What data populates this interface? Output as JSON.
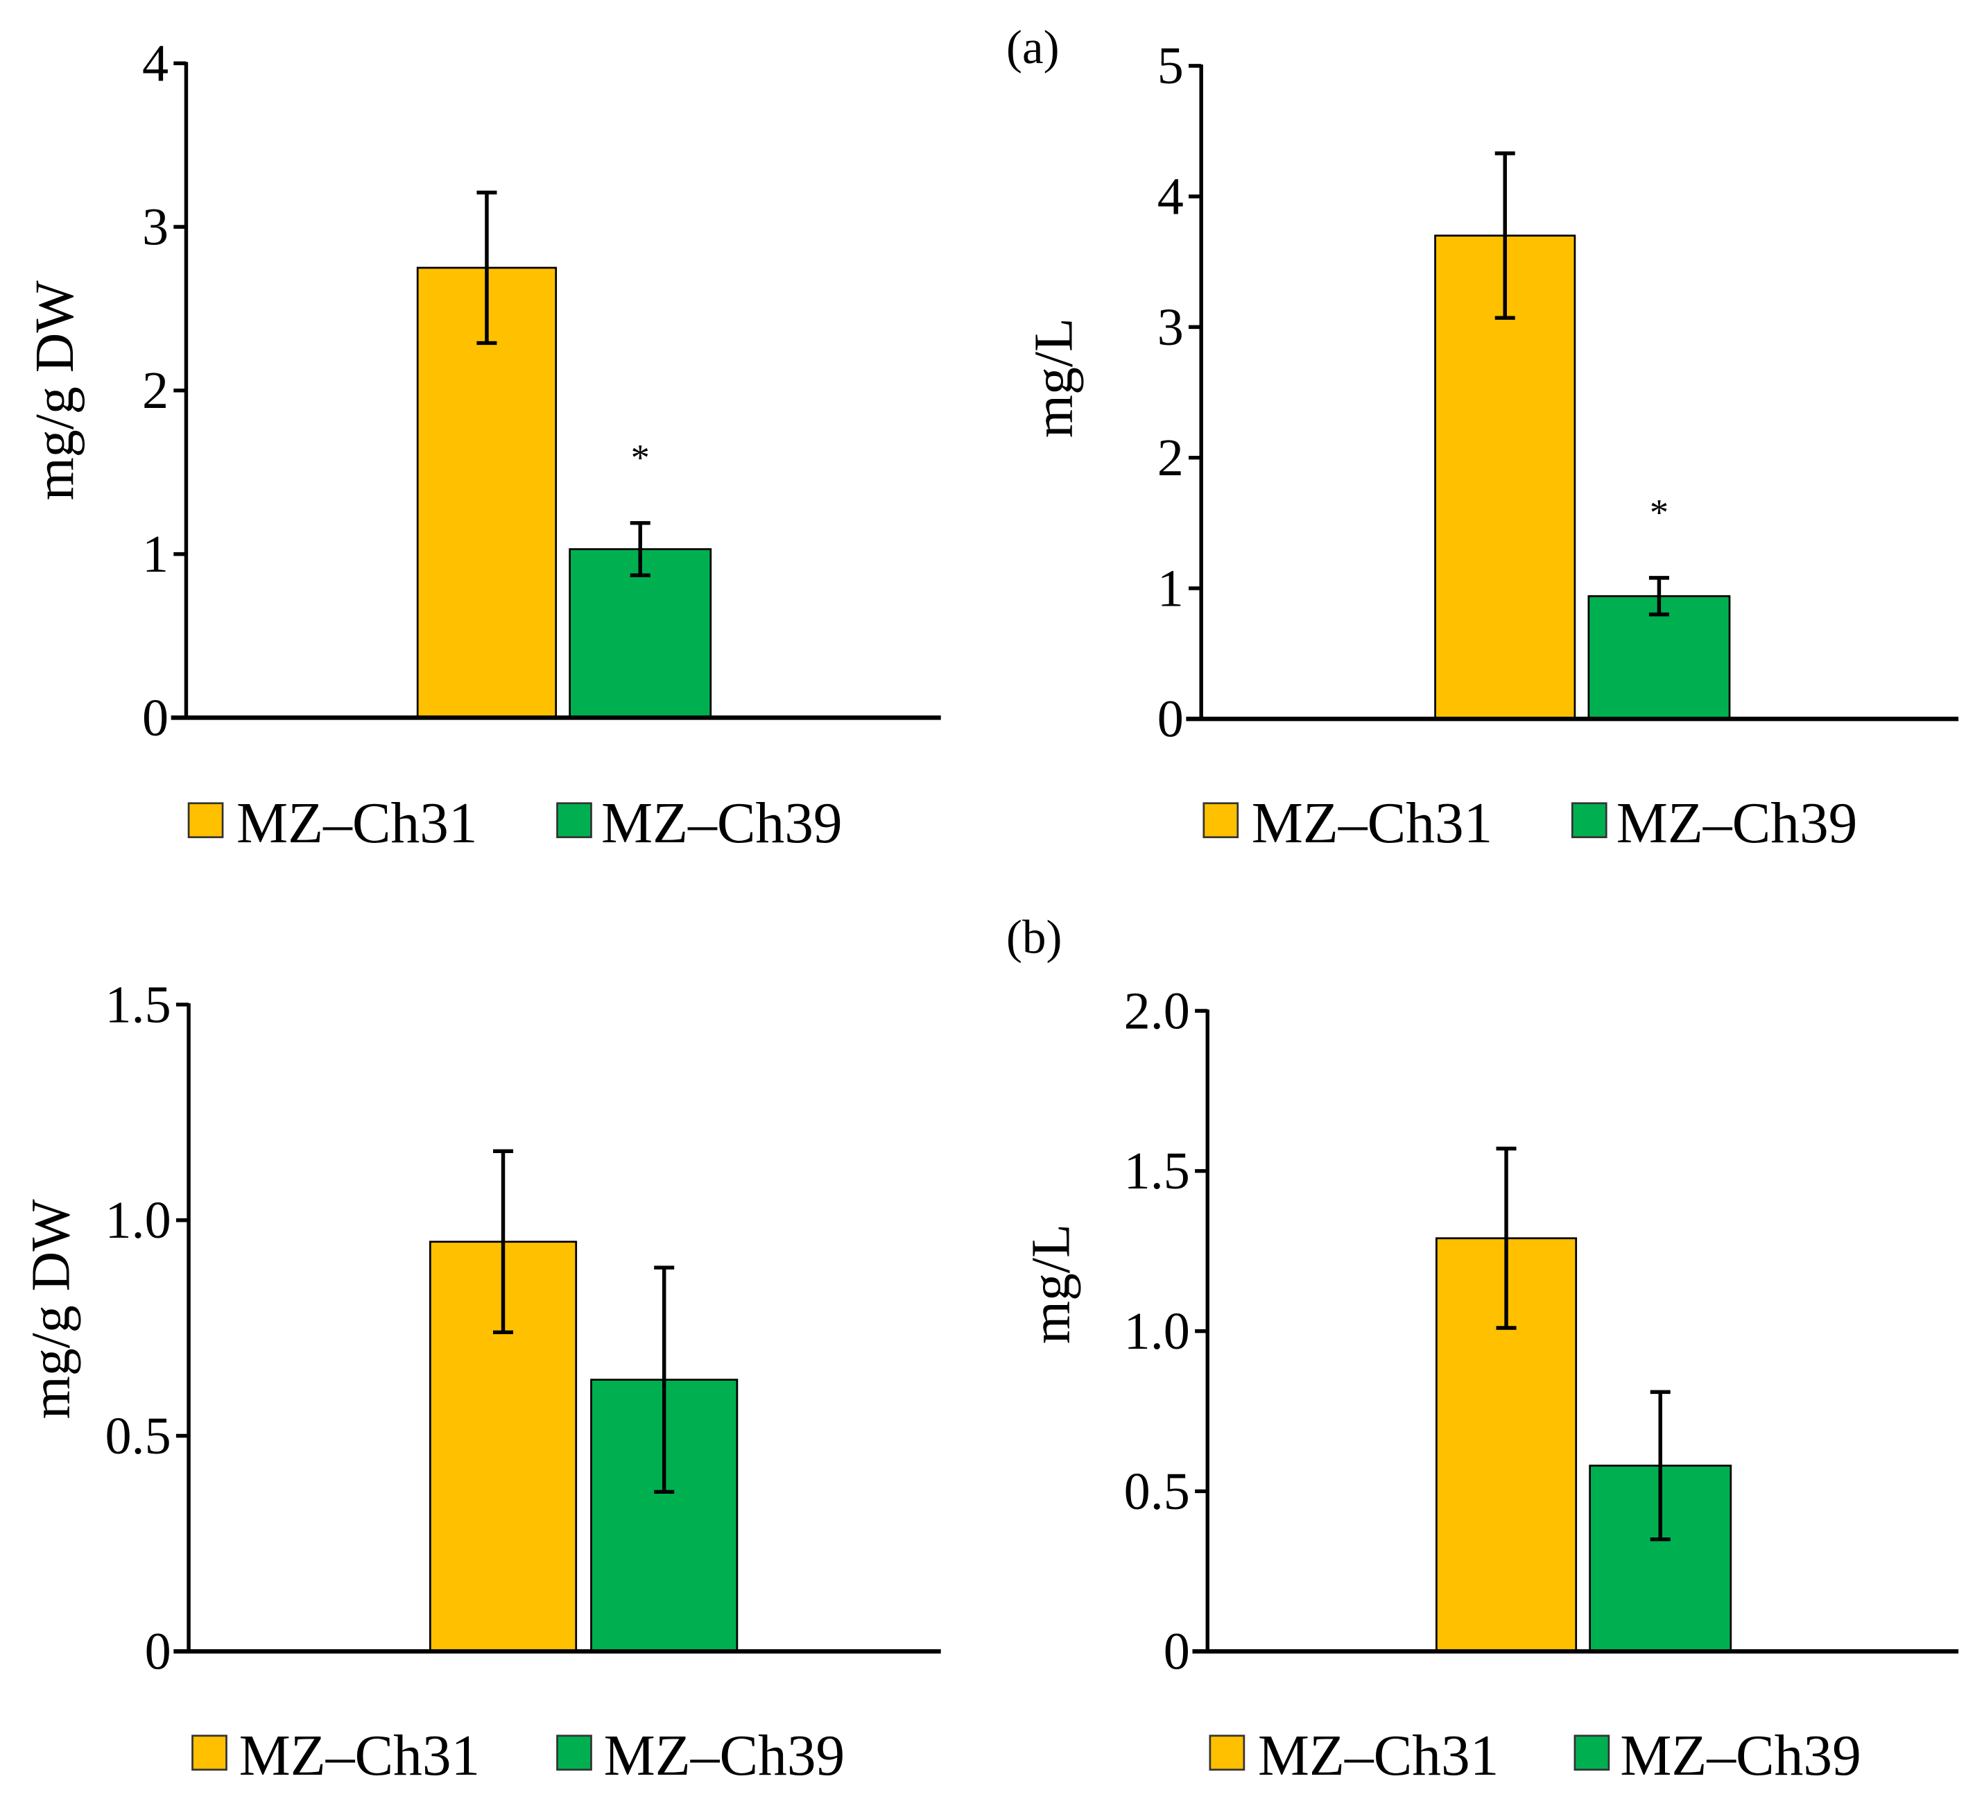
{
  "panel_labels": {
    "a": "(a)",
    "b": "(b)"
  },
  "colors": {
    "MZ-Ch31": "#FFC000",
    "MZ-Ch39": "#00B050",
    "axis": "#000000"
  },
  "chart_data": [
    {
      "type": "bar",
      "panel": "(a)",
      "ylabel": "mg/g DW",
      "ylim": [
        0,
        4
      ],
      "yticks": [
        0,
        1,
        2,
        3,
        4
      ],
      "ytick_labels": [
        "0",
        "1",
        "2",
        "3",
        "4"
      ],
      "grid": false,
      "legend": "bottom",
      "series": [
        {
          "name": "MZ–Ch31",
          "value": 2.75,
          "error": 0.46,
          "annotation": ""
        },
        {
          "name": "MZ–Ch39",
          "value": 1.03,
          "error": 0.16,
          "annotation": "*"
        }
      ]
    },
    {
      "type": "bar",
      "panel": "(a)",
      "ylabel": "mg/L",
      "ylim": [
        0,
        5
      ],
      "yticks": [
        0,
        1,
        2,
        3,
        4,
        5
      ],
      "ytick_labels": [
        "0",
        "1",
        "2",
        "3",
        "4",
        "5"
      ],
      "grid": false,
      "legend": "bottom",
      "series": [
        {
          "name": "MZ–Ch31",
          "value": 3.7,
          "error": 0.63,
          "annotation": ""
        },
        {
          "name": "MZ–Ch39",
          "value": 0.94,
          "error": 0.14,
          "annotation": "*"
        }
      ]
    },
    {
      "type": "bar",
      "panel": "(b)",
      "ylabel": "mg/g DW",
      "ylim": [
        0,
        1.5
      ],
      "yticks": [
        0,
        0.5,
        1.0,
        1.5
      ],
      "ytick_labels": [
        "0",
        "0.5",
        "1.0",
        "1.5"
      ],
      "grid": false,
      "legend": "bottom",
      "series": [
        {
          "name": "MZ–Ch31",
          "value": 0.95,
          "error": 0.21,
          "annotation": ""
        },
        {
          "name": "MZ–Ch39",
          "value": 0.63,
          "error": 0.26,
          "annotation": ""
        }
      ]
    },
    {
      "type": "bar",
      "panel": "(b)",
      "ylabel": "mg/L",
      "ylim": [
        0,
        2.0
      ],
      "yticks": [
        0,
        0.5,
        1.0,
        1.5,
        2.0
      ],
      "ytick_labels": [
        "0",
        "0.5",
        "1.0",
        "1.5",
        "2.0"
      ],
      "grid": false,
      "legend": "bottom",
      "series": [
        {
          "name": "MZ–Ch31",
          "value": 1.29,
          "error": 0.28,
          "annotation": ""
        },
        {
          "name": "MZ–Ch39",
          "value": 0.58,
          "error": 0.23,
          "annotation": ""
        }
      ]
    }
  ]
}
